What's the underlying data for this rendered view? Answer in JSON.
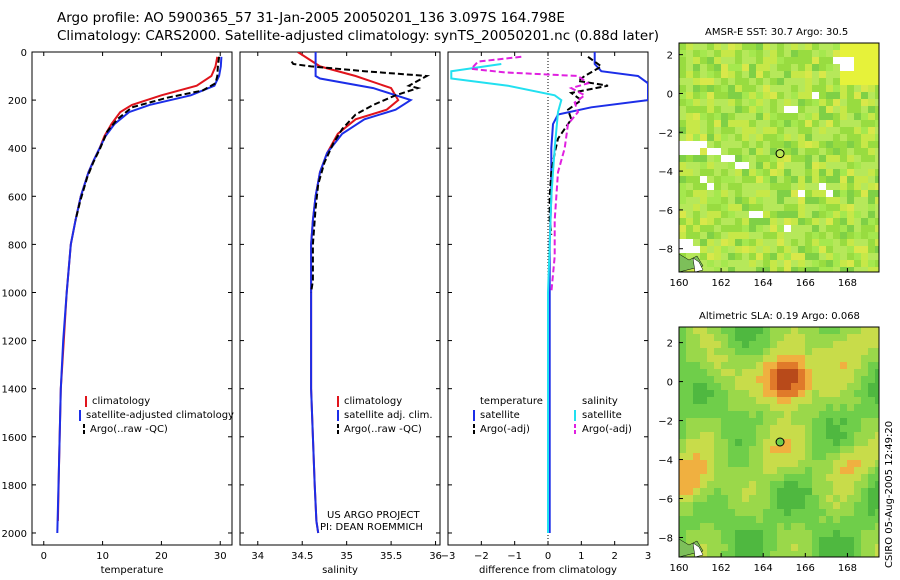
{
  "header": {
    "line1": "Argo profile: AO 5900365_57 31-Jan-2005 20050201_136 3.097S 164.798E",
    "line2": "Climatology: CARS2000. Satellite-adjusted climatology: synTS_20050201.nc (0.88d later)"
  },
  "credit": {
    "project": "US ARGO PROJECT",
    "pi": "PI: DEAN ROEMMICH",
    "stamp": "CSIRO 05-Aug-2005 12:49:20"
  },
  "colors": {
    "climatology": "#e0141c",
    "satellite": "#1c2ee8",
    "argo": "#000000",
    "salinity_sat": "#22e0f0",
    "salinity_argo": "#e020e0"
  },
  "chart_data": [
    {
      "type": "line",
      "name": "temperature-panel",
      "xlabel": "temperature",
      "ylabel": "",
      "xlim": [
        -2,
        32
      ],
      "ylim": [
        2050,
        0
      ],
      "xticks": [
        0,
        10,
        20,
        30
      ],
      "yticks": [
        0,
        200,
        400,
        600,
        800,
        1000,
        1200,
        1400,
        1600,
        1800,
        2000
      ],
      "legend": [
        "climatology",
        "satellite-adjusted climatology",
        "Argo(..raw -QC)"
      ],
      "series": [
        {
          "name": "climatology",
          "style": "solid",
          "color": "climatology",
          "x": [
            29.5,
            29.2,
            28.5,
            26,
            20,
            15,
            13,
            11.5,
            10.3,
            9.5,
            8.5,
            7.6,
            6.3,
            5.4,
            4.6,
            3.9,
            3.4,
            2.9,
            2.6,
            2.4
          ],
          "depth": [
            20,
            60,
            100,
            140,
            180,
            220,
            250,
            300,
            350,
            400,
            450,
            500,
            600,
            700,
            800,
            1000,
            1200,
            1400,
            1700,
            1950
          ]
        },
        {
          "name": "satellite",
          "style": "solid",
          "color": "satellite",
          "x": [
            30.2,
            30.1,
            29.8,
            29,
            25,
            18,
            14.5,
            12,
            10.5,
            9.5,
            8.5,
            7.6,
            6.3,
            5.4,
            4.6,
            3.9,
            3.3,
            2.9,
            2.6,
            2.3
          ],
          "depth": [
            20,
            60,
            100,
            140,
            180,
            220,
            250,
            300,
            350,
            400,
            450,
            500,
            600,
            700,
            800,
            1000,
            1200,
            1400,
            1700,
            2000
          ]
        },
        {
          "name": "argo",
          "style": "dashed",
          "color": "argo",
          "x": [
            29.8,
            29.6,
            29.5,
            29.2,
            27,
            21,
            15,
            12.5,
            10.8,
            9.6,
            8.4,
            7.4,
            6.2,
            5.4
          ],
          "depth": [
            20,
            60,
            100,
            130,
            160,
            190,
            230,
            280,
            330,
            400,
            460,
            520,
            620,
            700
          ]
        }
      ]
    },
    {
      "type": "line",
      "name": "salinity-panel",
      "xlabel": "salinity",
      "ylabel": "",
      "xlim": [
        33.8,
        36.05
      ],
      "ylim": [
        2050,
        0
      ],
      "xticks": [
        34,
        34.5,
        35,
        35.5,
        36
      ],
      "yticks": [
        0,
        200,
        400,
        600,
        800,
        1000,
        1200,
        1400,
        1600,
        1800,
        2000
      ],
      "legend": [
        "climatology",
        "satellite adj. clim.",
        "Argo(..raw -QC)"
      ],
      "series": [
        {
          "name": "climatology",
          "style": "solid",
          "color": "climatology",
          "x": [
            34.45,
            34.7,
            35.1,
            35.5,
            35.58,
            35.45,
            35.1,
            34.9,
            34.78,
            34.7,
            34.65,
            34.62,
            34.6,
            34.6,
            34.6,
            34.6,
            34.62,
            34.64,
            34.66,
            34.68
          ],
          "depth": [
            0,
            60,
            100,
            150,
            200,
            240,
            280,
            340,
            420,
            500,
            600,
            700,
            800,
            1000,
            1200,
            1400,
            1600,
            1800,
            1950,
            2000
          ]
        },
        {
          "name": "satellite",
          "style": "solid",
          "color": "satellite",
          "x": [
            34.65,
            34.65,
            34.7,
            35.3,
            35.72,
            35.55,
            35.2,
            34.95,
            34.78,
            34.7,
            34.65,
            34.62,
            34.6,
            34.6,
            34.6,
            34.6,
            34.62,
            34.64,
            34.66,
            34.68
          ],
          "depth": [
            0,
            100,
            110,
            150,
            200,
            240,
            280,
            340,
            420,
            500,
            600,
            700,
            800,
            1000,
            1200,
            1400,
            1600,
            1800,
            1950,
            2000
          ]
        },
        {
          "name": "argo",
          "style": "dashed",
          "color": "argo",
          "x": [
            34.38,
            34.4,
            34.6,
            35.2,
            35.9,
            35.7,
            35.8,
            35.55,
            35.3,
            35.1,
            34.95,
            34.85,
            34.75,
            34.68,
            34.65,
            34.62,
            34.62,
            34.6
          ],
          "depth": [
            40,
            50,
            60,
            80,
            100,
            140,
            150,
            180,
            220,
            260,
            320,
            380,
            460,
            550,
            650,
            800,
            950,
            1000
          ]
        }
      ]
    },
    {
      "type": "line",
      "name": "difference-panel",
      "xlabel": "difference from climatology",
      "ylabel": "",
      "xlim": [
        -3,
        3
      ],
      "ylim": [
        2050,
        0
      ],
      "xticks": [
        -3,
        -2,
        -1,
        0,
        1,
        2,
        3
      ],
      "yticks": [
        0,
        200,
        400,
        600,
        800,
        1000,
        1200,
        1400,
        1600,
        1800,
        2000
      ],
      "legend_left": [
        "temperature",
        "satellite",
        "Argo(-adj)"
      ],
      "legend_right": [
        "salinity",
        "satellite",
        "Argo(-adj)"
      ],
      "series": [
        {
          "name": "temperature-satellite",
          "style": "solid",
          "color": "satellite",
          "x": [
            1.4,
            1.4,
            1.6,
            2.7,
            3.0,
            3.0,
            1.3,
            0.3,
            0.15,
            0.1,
            0.1,
            0.05,
            0.05,
            0.05,
            0.05,
            0.05
          ],
          "depth": [
            0,
            50,
            80,
            100,
            130,
            200,
            230,
            260,
            300,
            400,
            600,
            800,
            1000,
            1400,
            1800,
            2000
          ]
        },
        {
          "name": "temperature-argo",
          "style": "dashed",
          "color": "argo",
          "x": [
            1.2,
            1.6,
            1.1,
            0.9,
            1.8,
            0.7,
            1.0,
            0.6,
            0.7,
            0.3,
            0.2,
            0.1,
            0.05,
            0.05,
            0.1
          ],
          "depth": [
            20,
            60,
            100,
            120,
            140,
            170,
            200,
            240,
            280,
            360,
            420,
            500,
            600,
            700,
            760
          ]
        },
        {
          "name": "salinity-satellite",
          "style": "solid",
          "color": "salinity_sat",
          "x": [
            -1.4,
            -2.9,
            -2.9,
            -1.2,
            0.2,
            0.4,
            0.3,
            0.2,
            0.1,
            0.05,
            0.0,
            0.0,
            0.0,
            0.0
          ],
          "depth": [
            50,
            80,
            110,
            140,
            180,
            200,
            250,
            400,
            600,
            800,
            1000,
            1400,
            1800,
            2000
          ]
        },
        {
          "name": "salinity-argo",
          "style": "dashed",
          "color": "salinity_argo",
          "x": [
            -0.8,
            -2.1,
            -2.3,
            -1.3,
            0.9,
            1.2,
            0.7,
            1.1,
            0.8,
            0.9,
            0.6,
            0.5,
            0.3,
            0.2,
            0.2,
            0.1
          ],
          "depth": [
            20,
            40,
            70,
            85,
            100,
            130,
            150,
            180,
            210,
            250,
            300,
            400,
            500,
            700,
            850,
            1000
          ]
        }
      ]
    },
    {
      "type": "heatmap",
      "name": "sst-map",
      "title": "AMSR-E SST: 30.7 Argo: 30.5",
      "xlim": [
        160,
        169.5
      ],
      "ylim": [
        -9.2,
        2.6
      ],
      "xticks": [
        160,
        162,
        164,
        166,
        168
      ],
      "yticks": [
        2,
        0,
        -2,
        -4,
        -6,
        -8
      ],
      "marker": {
        "lon": 164.8,
        "lat": -3.1
      }
    },
    {
      "type": "heatmap",
      "name": "sla-map",
      "title": "Altimetric SLA: 0.19 Argo: 0.068",
      "xlim": [
        160,
        169.5
      ],
      "ylim": [
        -9,
        2.8
      ],
      "xticks": [
        160,
        162,
        164,
        166,
        168
      ],
      "yticks": [
        2,
        0,
        -2,
        -4,
        -6,
        -8
      ],
      "marker": {
        "lon": 164.8,
        "lat": -3.1
      }
    }
  ]
}
